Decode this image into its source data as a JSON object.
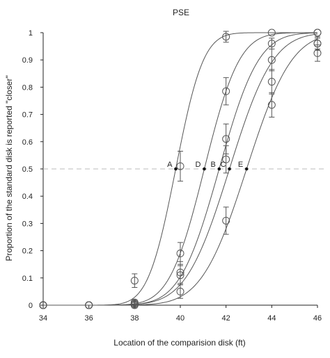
{
  "chart_data": {
    "type": "scatter",
    "title": "PSE",
    "xlabel": "Location of the comparision disk (ft)",
    "ylabel": "Proportion of the standard disk is reported \"closer\"",
    "xlim": [
      34,
      46
    ],
    "ylim": [
      0,
      1
    ],
    "xticks": [
      "34",
      "36",
      "38",
      "40",
      "42",
      "44",
      "46"
    ],
    "yticks": [
      "0",
      "0.1",
      "0.2",
      "0.3",
      "0.4",
      "0.5",
      "0.6",
      "0.7",
      "0.8",
      "0.9",
      "1"
    ],
    "reference_line": {
      "y": 0.5,
      "style": "dashed"
    },
    "grid": false,
    "colors": {
      "curve": "#555555",
      "marker": "#555555",
      "reference": "#bbbbbb",
      "axis": "#222222"
    },
    "series": [
      {
        "pse": 39.8,
        "pse_label": "A",
        "x": [
          34,
          36,
          38,
          40,
          42,
          44,
          46
        ],
        "y": [
          0,
          0,
          0.09,
          0.51,
          0.985,
          1.0,
          1.0
        ],
        "err": [
          0,
          0,
          0.025,
          0.055,
          0.02,
          0,
          0
        ]
      },
      {
        "pse": 41.05,
        "pse_label": "D",
        "x": [
          34,
          36,
          38,
          40,
          42,
          44,
          46
        ],
        "y": [
          0,
          0,
          0.01,
          0.19,
          0.785,
          0.96,
          1.0
        ],
        "err": [
          0,
          0,
          0.01,
          0.04,
          0.05,
          0.02,
          0
        ]
      },
      {
        "pse": 41.7,
        "pse_label": "B",
        "x": [
          34,
          36,
          38,
          40,
          42,
          44,
          46
        ],
        "y": [
          0,
          0,
          0.005,
          0.12,
          0.61,
          0.9,
          0.96
        ],
        "err": [
          0,
          0,
          0.01,
          0.04,
          0.055,
          0.04,
          0.025
        ]
      },
      {
        "pse": 42.15,
        "pse_label": "C",
        "x": [
          34,
          36,
          38,
          40,
          42,
          44,
          46
        ],
        "y": [
          0,
          0,
          0.005,
          0.11,
          0.535,
          0.82,
          0.96
        ],
        "err": [
          0,
          0,
          0.01,
          0.035,
          0.05,
          0.045,
          0.02
        ]
      },
      {
        "pse": 42.9,
        "pse_label": "E",
        "x": [
          34,
          36,
          38,
          40,
          42,
          44,
          46
        ],
        "y": [
          0,
          0,
          0,
          0.05,
          0.31,
          0.735,
          0.925
        ],
        "err": [
          0,
          0,
          0.01,
          0.025,
          0.05,
          0.045,
          0.03
        ]
      }
    ]
  }
}
